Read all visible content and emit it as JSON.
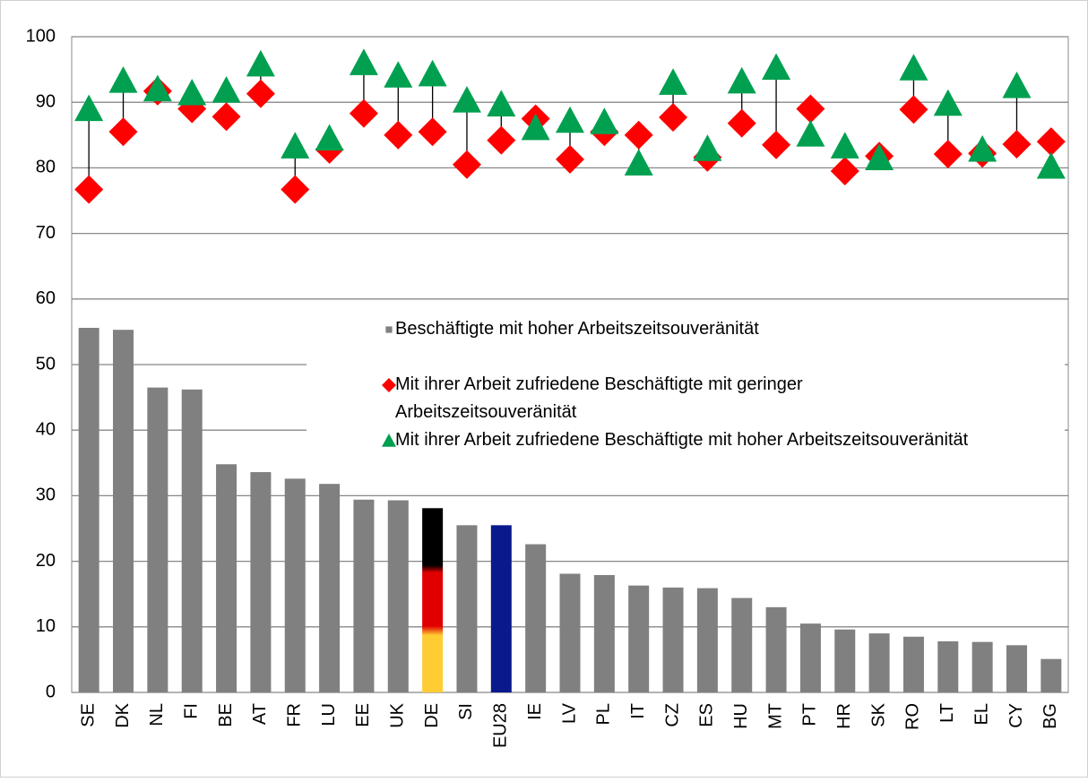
{
  "chart_data": {
    "type": "bar-dot",
    "categories": [
      "SE",
      "DK",
      "NL",
      "FI",
      "BE",
      "AT",
      "FR",
      "LU",
      "EE",
      "UK",
      "DE",
      "SI",
      "EU28",
      "IE",
      "LV",
      "PL",
      "IT",
      "CZ",
      "ES",
      "HU",
      "MT",
      "PT",
      "HR",
      "SK",
      "RO",
      "LT",
      "EL",
      "CY",
      "BG"
    ],
    "series": [
      {
        "name": "Beschäftigte mit hoher Arbeitszeitsouveränität",
        "kind": "bar",
        "color": "#808080",
        "values": [
          55.6,
          55.3,
          46.5,
          46.2,
          34.8,
          33.6,
          32.6,
          31.8,
          29.4,
          29.3,
          28.1,
          25.5,
          25.5,
          22.6,
          18.1,
          17.9,
          16.3,
          16.0,
          15.9,
          14.4,
          13.0,
          10.5,
          9.6,
          9.0,
          8.5,
          7.8,
          7.7,
          7.2,
          5.1
        ],
        "point_fills": [
          "#808080",
          "#808080",
          "#808080",
          "#808080",
          "#808080",
          "#808080",
          "#808080",
          "#808080",
          "#808080",
          "#808080",
          "de-flag",
          "#808080",
          "#0a1a8c",
          "#808080",
          "#808080",
          "#808080",
          "#808080",
          "#808080",
          "#808080",
          "#808080",
          "#808080",
          "#808080",
          "#808080",
          "#808080",
          "#808080",
          "#808080",
          "#808080",
          "#808080",
          "#808080"
        ]
      },
      {
        "name": "Mit ihrer Arbeit zufriedene Beschäftigte mit geringer Arbeitszeitsouveränität",
        "kind": "diamond",
        "color": "#ff0000",
        "values": [
          76.7,
          85.5,
          91.7,
          89.0,
          87.8,
          91.3,
          76.7,
          82.8,
          88.3,
          85.0,
          85.5,
          80.5,
          84.2,
          87.5,
          81.3,
          85.5,
          85.0,
          87.7,
          81.6,
          86.8,
          83.5,
          89.0,
          79.5,
          81.8,
          88.9,
          82.1,
          82.2,
          83.6,
          84.0
        ]
      },
      {
        "name": "Mit ihrer Arbeit zufriedene Beschäftigte mit hoher Arbeitszeitsouveränität",
        "kind": "triangle",
        "color": "#00a050",
        "values": [
          89.0,
          93.3,
          92.0,
          91.4,
          91.8,
          95.8,
          83.3,
          84.5,
          96.0,
          94.1,
          94.3,
          90.3,
          89.7,
          86.1,
          87.2,
          87.0,
          80.7,
          93.0,
          82.9,
          93.2,
          95.3,
          85.1,
          83.3,
          81.5,
          95.2,
          89.8,
          82.8,
          92.5,
          80.2
        ]
      }
    ],
    "ylim": [
      0,
      100
    ],
    "yticks": [
      0,
      10,
      20,
      30,
      40,
      50,
      60,
      70,
      80,
      90,
      100
    ],
    "grid": true,
    "drop_lines": true,
    "legend": "inside-right"
  }
}
